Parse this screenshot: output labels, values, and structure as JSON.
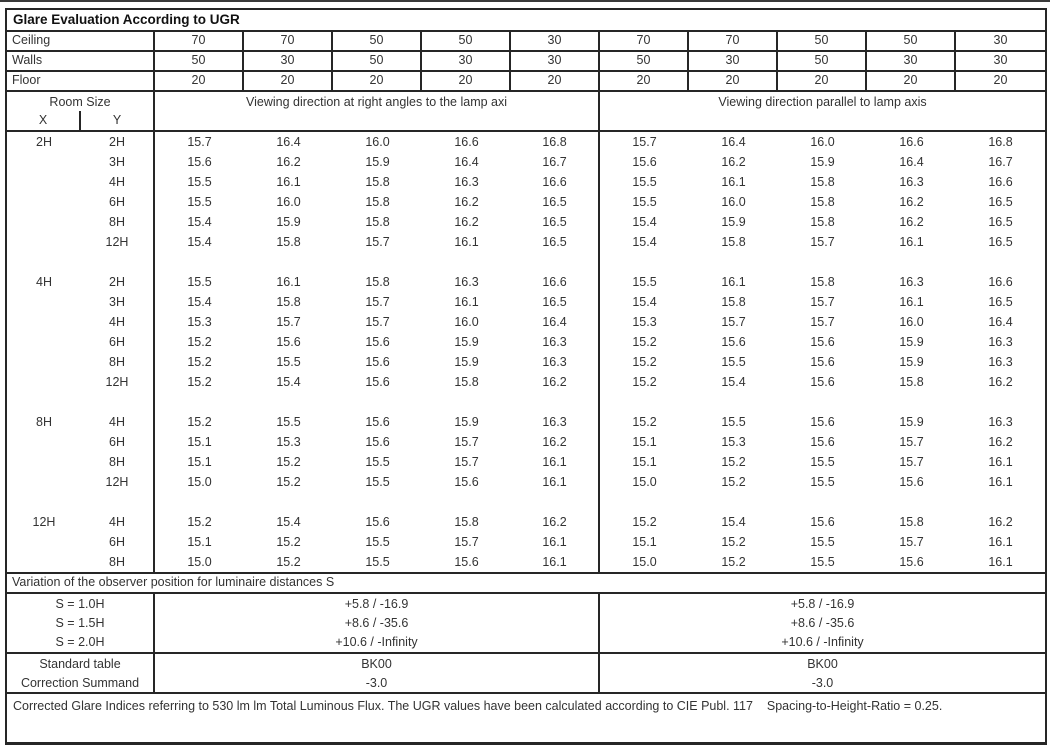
{
  "title": "Glare Evaluation According to UGR",
  "colors": {
    "border": "#262626",
    "text": "#333333",
    "background": "#ffffff"
  },
  "surface_rows": [
    {
      "label": "Ceiling",
      "values": [
        "70",
        "70",
        "50",
        "50",
        "30",
        "70",
        "70",
        "50",
        "50",
        "30"
      ]
    },
    {
      "label": "Walls",
      "values": [
        "50",
        "30",
        "50",
        "30",
        "30",
        "50",
        "30",
        "50",
        "30",
        "30"
      ]
    },
    {
      "label": "Floor",
      "values": [
        "20",
        "20",
        "20",
        "20",
        "20",
        "20",
        "20",
        "20",
        "20",
        "20"
      ]
    }
  ],
  "header": {
    "room_size": "Room Size",
    "x_label": "X",
    "y_label": "Y",
    "left_span": "Viewing direction at right angles to the lamp axi",
    "right_span": "Viewing direction parallel to lamp axis"
  },
  "ugr_blocks": [
    {
      "x": "2H",
      "rows": [
        {
          "y": "2H",
          "values": [
            "15.7",
            "16.4",
            "16.0",
            "16.6",
            "16.8",
            "15.7",
            "16.4",
            "16.0",
            "16.6",
            "16.8"
          ]
        },
        {
          "y": "3H",
          "values": [
            "15.6",
            "16.2",
            "15.9",
            "16.4",
            "16.7",
            "15.6",
            "16.2",
            "15.9",
            "16.4",
            "16.7"
          ]
        },
        {
          "y": "4H",
          "values": [
            "15.5",
            "16.1",
            "15.8",
            "16.3",
            "16.6",
            "15.5",
            "16.1",
            "15.8",
            "16.3",
            "16.6"
          ]
        },
        {
          "y": "6H",
          "values": [
            "15.5",
            "16.0",
            "15.8",
            "16.2",
            "16.5",
            "15.5",
            "16.0",
            "15.8",
            "16.2",
            "16.5"
          ]
        },
        {
          "y": "8H",
          "values": [
            "15.4",
            "15.9",
            "15.8",
            "16.2",
            "16.5",
            "15.4",
            "15.9",
            "15.8",
            "16.2",
            "16.5"
          ]
        },
        {
          "y": "12H",
          "values": [
            "15.4",
            "15.8",
            "15.7",
            "16.1",
            "16.5",
            "15.4",
            "15.8",
            "15.7",
            "16.1",
            "16.5"
          ]
        }
      ]
    },
    {
      "x": "4H",
      "rows": [
        {
          "y": "2H",
          "values": [
            "15.5",
            "16.1",
            "15.8",
            "16.3",
            "16.6",
            "15.5",
            "16.1",
            "15.8",
            "16.3",
            "16.6"
          ]
        },
        {
          "y": "3H",
          "values": [
            "15.4",
            "15.8",
            "15.7",
            "16.1",
            "16.5",
            "15.4",
            "15.8",
            "15.7",
            "16.1",
            "16.5"
          ]
        },
        {
          "y": "4H",
          "values": [
            "15.3",
            "15.7",
            "15.7",
            "16.0",
            "16.4",
            "15.3",
            "15.7",
            "15.7",
            "16.0",
            "16.4"
          ]
        },
        {
          "y": "6H",
          "values": [
            "15.2",
            "15.6",
            "15.6",
            "15.9",
            "16.3",
            "15.2",
            "15.6",
            "15.6",
            "15.9",
            "16.3"
          ]
        },
        {
          "y": "8H",
          "values": [
            "15.2",
            "15.5",
            "15.6",
            "15.9",
            "16.3",
            "15.2",
            "15.5",
            "15.6",
            "15.9",
            "16.3"
          ]
        },
        {
          "y": "12H",
          "values": [
            "15.2",
            "15.4",
            "15.6",
            "15.8",
            "16.2",
            "15.2",
            "15.4",
            "15.6",
            "15.8",
            "16.2"
          ]
        }
      ]
    },
    {
      "x": "8H",
      "rows": [
        {
          "y": "4H",
          "values": [
            "15.2",
            "15.5",
            "15.6",
            "15.9",
            "16.3",
            "15.2",
            "15.5",
            "15.6",
            "15.9",
            "16.3"
          ]
        },
        {
          "y": "6H",
          "values": [
            "15.1",
            "15.3",
            "15.6",
            "15.7",
            "16.2",
            "15.1",
            "15.3",
            "15.6",
            "15.7",
            "16.2"
          ]
        },
        {
          "y": "8H",
          "values": [
            "15.1",
            "15.2",
            "15.5",
            "15.7",
            "16.1",
            "15.1",
            "15.2",
            "15.5",
            "15.7",
            "16.1"
          ]
        },
        {
          "y": "12H",
          "values": [
            "15.0",
            "15.2",
            "15.5",
            "15.6",
            "16.1",
            "15.0",
            "15.2",
            "15.5",
            "15.6",
            "16.1"
          ]
        }
      ]
    },
    {
      "x": "12H",
      "rows": [
        {
          "y": "4H",
          "values": [
            "15.2",
            "15.4",
            "15.6",
            "15.8",
            "16.2",
            "15.2",
            "15.4",
            "15.6",
            "15.8",
            "16.2"
          ]
        },
        {
          "y": "6H",
          "values": [
            "15.1",
            "15.2",
            "15.5",
            "15.7",
            "16.1",
            "15.1",
            "15.2",
            "15.5",
            "15.7",
            "16.1"
          ]
        },
        {
          "y": "8H",
          "values": [
            "15.0",
            "15.2",
            "15.5",
            "15.6",
            "16.1",
            "15.0",
            "15.2",
            "15.5",
            "15.6",
            "16.1"
          ]
        }
      ]
    }
  ],
  "variation": {
    "heading": "Variation of the observer position for luminaire distances S",
    "rows": [
      {
        "label": "S = 1.0H",
        "left": "+5.8 / -16.9",
        "right": "+5.8 / -16.9"
      },
      {
        "label": "S = 1.5H",
        "left": "+8.6 / -35.6",
        "right": "+8.6 / -35.6"
      },
      {
        "label": "S = 2.0H",
        "left": "+10.6 / -Infinity",
        "right": "+10.6 / -Infinity"
      }
    ]
  },
  "summary_rows": [
    {
      "label": "Standard table",
      "left": "BK00",
      "right": "BK00"
    },
    {
      "label": "Correction Summand",
      "left": "-3.0",
      "right": "-3.0"
    }
  ],
  "footer": "Corrected Glare Indices referring to 530 lm lm Total Luminous Flux. The UGR values have been calculated according to CIE Publ. 117    Spacing-to-Height-Ratio = 0.25."
}
